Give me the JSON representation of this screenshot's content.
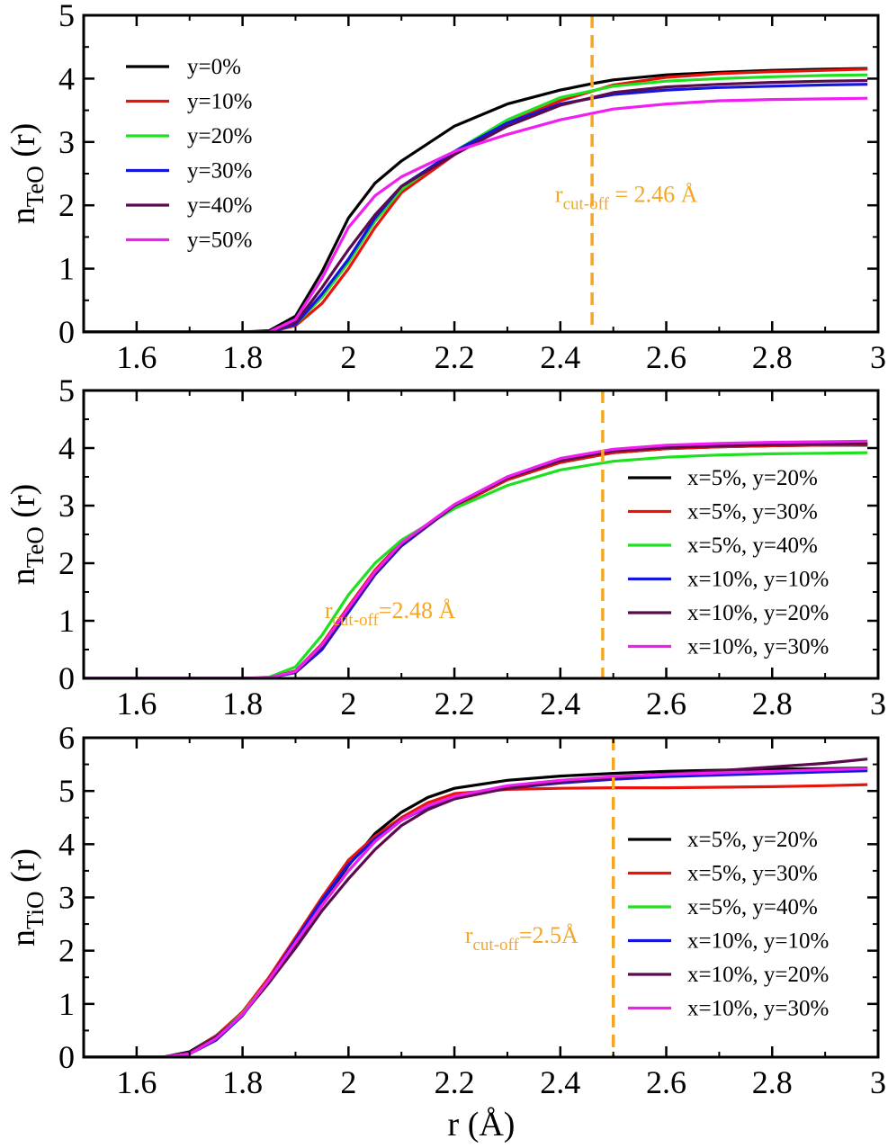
{
  "xlabel": "r (Å)",
  "chart_data": [
    {
      "type": "line",
      "ylabel": {
        "base": "n",
        "sub": "TeO",
        "suffix": " (r)"
      },
      "xlim": [
        1.5,
        3.0
      ],
      "ylim": [
        0,
        5
      ],
      "xticks": [
        "1.6",
        "1.8",
        "2",
        "2.2",
        "2.4",
        "2.6",
        "2.8",
        "3"
      ],
      "yticks": [
        "0",
        "1",
        "2",
        "3",
        "4",
        "5"
      ],
      "legend_position": "top-left",
      "cutoff": {
        "x": 2.46,
        "label_base": "r",
        "label_sub": "cut-off",
        "label_tail": " = 2.46 Å",
        "label_at": [
          2.39,
          2.05
        ]
      },
      "series": [
        {
          "name": "y=0%",
          "color": "#000000",
          "x": [
            1.5,
            1.8,
            1.85,
            1.9,
            1.95,
            2.0,
            2.05,
            2.1,
            2.2,
            2.3,
            2.4,
            2.46,
            2.5,
            2.6,
            2.7,
            2.8,
            2.9,
            2.98
          ],
          "y": [
            0,
            0,
            0.02,
            0.25,
            0.95,
            1.8,
            2.35,
            2.7,
            3.25,
            3.6,
            3.82,
            3.92,
            3.98,
            4.06,
            4.1,
            4.13,
            4.15,
            4.16
          ]
        },
        {
          "name": "y=10%",
          "color": "#e8140c",
          "x": [
            1.5,
            1.85,
            1.9,
            1.95,
            2.0,
            2.05,
            2.1,
            2.2,
            2.3,
            2.4,
            2.5,
            2.6,
            2.7,
            2.8,
            2.9,
            2.98
          ],
          "y": [
            0,
            0,
            0.1,
            0.45,
            1.0,
            1.65,
            2.2,
            2.8,
            3.3,
            3.65,
            3.9,
            4.02,
            4.08,
            4.11,
            4.13,
            4.15
          ]
        },
        {
          "name": "y=20%",
          "color": "#1fe01f",
          "x": [
            1.5,
            1.85,
            1.9,
            1.95,
            2.0,
            2.05,
            2.1,
            2.2,
            2.3,
            2.4,
            2.5,
            2.6,
            2.7,
            2.8,
            2.9,
            2.98
          ],
          "y": [
            0,
            0,
            0.12,
            0.55,
            1.1,
            1.75,
            2.25,
            2.85,
            3.35,
            3.7,
            3.88,
            3.96,
            4.0,
            4.03,
            4.05,
            4.06
          ]
        },
        {
          "name": "y=30%",
          "color": "#1515e0",
          "x": [
            1.5,
            1.85,
            1.9,
            1.95,
            2.0,
            2.05,
            2.1,
            2.2,
            2.3,
            2.4,
            2.5,
            2.6,
            2.7,
            2.8,
            2.9,
            2.98
          ],
          "y": [
            0,
            0,
            0.12,
            0.6,
            1.15,
            1.8,
            2.3,
            2.85,
            3.3,
            3.6,
            3.75,
            3.82,
            3.86,
            3.88,
            3.9,
            3.91
          ]
        },
        {
          "name": "y=40%",
          "color": "#5a0b4e",
          "x": [
            1.5,
            1.85,
            1.9,
            1.95,
            2.0,
            2.05,
            2.1,
            2.2,
            2.3,
            2.4,
            2.5,
            2.6,
            2.7,
            2.8,
            2.9,
            2.98
          ],
          "y": [
            0,
            0,
            0.15,
            0.7,
            1.3,
            1.85,
            2.3,
            2.8,
            3.25,
            3.58,
            3.78,
            3.87,
            3.91,
            3.94,
            3.96,
            3.97
          ]
        },
        {
          "name": "y=50%",
          "color": "#f01ef0",
          "x": [
            1.5,
            1.85,
            1.9,
            1.95,
            2.0,
            2.05,
            2.1,
            2.2,
            2.3,
            2.4,
            2.5,
            2.6,
            2.7,
            2.8,
            2.9,
            2.98
          ],
          "y": [
            0,
            0,
            0.2,
            0.85,
            1.65,
            2.15,
            2.45,
            2.85,
            3.12,
            3.35,
            3.52,
            3.6,
            3.65,
            3.67,
            3.68,
            3.69
          ]
        }
      ]
    },
    {
      "type": "line",
      "ylabel": {
        "base": "n",
        "sub": "TeO",
        "suffix": " (r)"
      },
      "xlim": [
        1.5,
        3.0
      ],
      "ylim": [
        0,
        5
      ],
      "xticks": [
        "1.6",
        "1.8",
        "2",
        "2.2",
        "2.4",
        "2.6",
        "2.8",
        "3"
      ],
      "yticks": [
        "0",
        "1",
        "2",
        "3",
        "4",
        "5"
      ],
      "legend_position": "right",
      "cutoff": {
        "x": 2.48,
        "label_base": "r",
        "label_sub": "cut-off",
        "label_tail": "=2.48 Å",
        "label_at": [
          1.955,
          1.05
        ]
      },
      "series": [
        {
          "name": "x=5%, y=20%",
          "color": "#000000",
          "x": [
            1.5,
            1.8,
            1.85,
            1.9,
            1.95,
            2.0,
            2.05,
            2.1,
            2.2,
            2.3,
            2.4,
            2.5,
            2.6,
            2.7,
            2.8,
            2.9,
            2.98
          ],
          "y": [
            0,
            0,
            0.01,
            0.12,
            0.55,
            1.2,
            1.85,
            2.35,
            2.98,
            3.45,
            3.75,
            3.92,
            3.99,
            4.02,
            4.04,
            4.05,
            4.05
          ]
        },
        {
          "name": "x=5%, y=30%",
          "color": "#e8140c",
          "x": [
            1.5,
            1.8,
            1.85,
            1.9,
            1.95,
            2.0,
            2.05,
            2.1,
            2.2,
            2.3,
            2.4,
            2.5,
            2.6,
            2.7,
            2.8,
            2.9,
            2.98
          ],
          "y": [
            0,
            0,
            0.01,
            0.13,
            0.6,
            1.25,
            1.88,
            2.37,
            2.98,
            3.45,
            3.75,
            3.92,
            3.99,
            4.02,
            4.04,
            4.05,
            4.06
          ]
        },
        {
          "name": "x=5%, y=40%",
          "color": "#1fe01f",
          "x": [
            1.5,
            1.8,
            1.85,
            1.9,
            1.95,
            2.0,
            2.05,
            2.1,
            2.2,
            2.3,
            2.4,
            2.5,
            2.6,
            2.7,
            2.8,
            2.9,
            2.98
          ],
          "y": [
            0,
            0,
            0.02,
            0.2,
            0.75,
            1.45,
            2.0,
            2.4,
            2.95,
            3.35,
            3.62,
            3.77,
            3.84,
            3.88,
            3.9,
            3.91,
            3.92
          ]
        },
        {
          "name": "x=10%, y=10%",
          "color": "#1515e0",
          "x": [
            1.5,
            1.8,
            1.85,
            1.9,
            1.95,
            2.0,
            2.05,
            2.1,
            2.2,
            2.3,
            2.4,
            2.5,
            2.6,
            2.7,
            2.8,
            2.9,
            2.98
          ],
          "y": [
            0,
            0,
            0.01,
            0.1,
            0.5,
            1.15,
            1.8,
            2.3,
            3.0,
            3.5,
            3.8,
            3.95,
            4.02,
            4.05,
            4.07,
            4.08,
            4.08
          ]
        },
        {
          "name": "x=10%, y=20%",
          "color": "#5a0b4e",
          "x": [
            1.5,
            1.8,
            1.85,
            1.9,
            1.95,
            2.0,
            2.05,
            2.1,
            2.2,
            2.3,
            2.4,
            2.5,
            2.6,
            2.7,
            2.8,
            2.9,
            2.98
          ],
          "y": [
            0,
            0,
            0.01,
            0.12,
            0.55,
            1.2,
            1.83,
            2.33,
            3.0,
            3.48,
            3.78,
            3.95,
            4.01,
            4.04,
            4.06,
            4.07,
            4.08
          ]
        },
        {
          "name": "x=10%, y=30%",
          "color": "#f01ef0",
          "x": [
            1.5,
            1.8,
            1.85,
            1.9,
            1.95,
            2.0,
            2.05,
            2.1,
            2.2,
            2.3,
            2.4,
            2.5,
            2.6,
            2.7,
            2.8,
            2.9,
            2.98
          ],
          "y": [
            0,
            0,
            0.01,
            0.12,
            0.58,
            1.22,
            1.85,
            2.35,
            3.02,
            3.5,
            3.82,
            3.98,
            4.05,
            4.08,
            4.1,
            4.11,
            4.12
          ]
        }
      ]
    },
    {
      "type": "line",
      "ylabel": {
        "base": "n",
        "sub": "TiO",
        "suffix": " (r)"
      },
      "xlim": [
        1.5,
        3.0
      ],
      "ylim": [
        0,
        6
      ],
      "xticks": [
        "1.6",
        "1.8",
        "2",
        "2.2",
        "2.4",
        "2.6",
        "2.8",
        "3"
      ],
      "yticks": [
        "0",
        "1",
        "2",
        "3",
        "4",
        "5",
        "6"
      ],
      "legend_position": "right",
      "cutoff": {
        "x": 2.5,
        "label_base": "r",
        "label_sub": "cut-off",
        "label_tail": "=2.5Å",
        "label_at": [
          2.22,
          2.15
        ]
      },
      "series": [
        {
          "name": "x=5%, y=20%",
          "color": "#000000",
          "x": [
            1.5,
            1.65,
            1.7,
            1.75,
            1.8,
            1.85,
            1.9,
            1.95,
            2.0,
            2.05,
            2.1,
            2.15,
            2.2,
            2.3,
            2.4,
            2.5,
            2.6,
            2.7,
            2.8,
            2.9,
            2.98
          ],
          "y": [
            0,
            0,
            0.1,
            0.4,
            0.8,
            1.4,
            2.1,
            2.9,
            3.6,
            4.2,
            4.6,
            4.88,
            5.05,
            5.2,
            5.28,
            5.33,
            5.37,
            5.39,
            5.41,
            5.42,
            5.43
          ]
        },
        {
          "name": "x=5%, y=30%",
          "color": "#e8140c",
          "x": [
            1.5,
            1.65,
            1.7,
            1.75,
            1.8,
            1.85,
            1.9,
            1.95,
            2.0,
            2.05,
            2.1,
            2.15,
            2.2,
            2.3,
            2.4,
            2.5,
            2.6,
            2.7,
            2.8,
            2.9,
            2.98
          ],
          "y": [
            0,
            0,
            0.08,
            0.4,
            0.85,
            1.5,
            2.25,
            3.0,
            3.7,
            4.15,
            4.5,
            4.78,
            4.95,
            5.03,
            5.05,
            5.06,
            5.06,
            5.07,
            5.08,
            5.1,
            5.12
          ]
        },
        {
          "name": "x=5%, y=40%",
          "color": "#1fe01f",
          "x": [
            1.5,
            1.65,
            1.7,
            1.75,
            1.8,
            1.85,
            1.9,
            1.95,
            2.0,
            2.05,
            2.1,
            2.15,
            2.2,
            2.3,
            2.4,
            2.5,
            2.6,
            2.7,
            2.8,
            2.9,
            2.98
          ],
          "y": [
            0,
            0,
            0.08,
            0.38,
            0.82,
            1.45,
            2.15,
            2.85,
            3.5,
            4.05,
            4.45,
            4.72,
            4.9,
            5.08,
            5.18,
            5.24,
            5.28,
            5.31,
            5.34,
            5.37,
            5.4
          ]
        },
        {
          "name": "x=10%, y=10%",
          "color": "#1515e0",
          "x": [
            1.5,
            1.65,
            1.7,
            1.75,
            1.8,
            1.85,
            1.9,
            1.95,
            2.0,
            2.05,
            2.1,
            2.15,
            2.2,
            2.3,
            2.4,
            2.5,
            2.6,
            2.7,
            2.8,
            2.9,
            2.98
          ],
          "y": [
            0,
            0,
            0.06,
            0.32,
            0.78,
            1.45,
            2.2,
            2.95,
            3.62,
            4.1,
            4.45,
            4.7,
            4.88,
            5.05,
            5.15,
            5.22,
            5.27,
            5.3,
            5.33,
            5.36,
            5.38
          ]
        },
        {
          "name": "x=10%, y=20%",
          "color": "#5a0b4e",
          "x": [
            1.5,
            1.65,
            1.7,
            1.75,
            1.8,
            1.85,
            1.9,
            1.95,
            2.0,
            2.05,
            2.1,
            2.15,
            2.2,
            2.3,
            2.4,
            2.5,
            2.6,
            2.7,
            2.8,
            2.9,
            2.98
          ],
          "y": [
            0,
            0,
            0.08,
            0.38,
            0.8,
            1.4,
            2.05,
            2.75,
            3.35,
            3.9,
            4.35,
            4.65,
            4.85,
            5.05,
            5.17,
            5.25,
            5.32,
            5.38,
            5.45,
            5.52,
            5.6
          ]
        },
        {
          "name": "x=10%, y=30%",
          "color": "#f01ef0",
          "x": [
            1.5,
            1.65,
            1.7,
            1.75,
            1.8,
            1.85,
            1.9,
            1.95,
            2.0,
            2.05,
            2.1,
            2.15,
            2.2,
            2.3,
            2.4,
            2.5,
            2.6,
            2.7,
            2.8,
            2.9,
            2.98
          ],
          "y": [
            0,
            0,
            0.06,
            0.35,
            0.8,
            1.45,
            2.15,
            2.85,
            3.5,
            4.05,
            4.45,
            4.72,
            4.9,
            5.1,
            5.2,
            5.27,
            5.31,
            5.34,
            5.37,
            5.4,
            5.42
          ]
        }
      ]
    }
  ]
}
